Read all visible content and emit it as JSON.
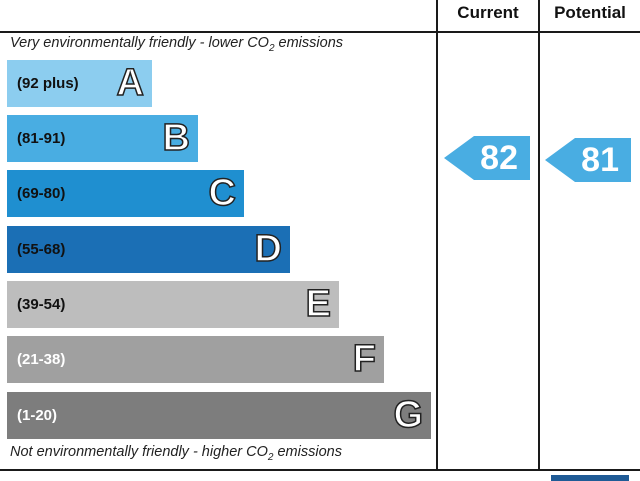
{
  "header": {
    "current_label": "Current",
    "potential_label": "Potential"
  },
  "captions": {
    "top_prefix": "Very environmentally friendly - lower C",
    "top_middle": "O",
    "top_sub": "2",
    "top_suffix": " emissions",
    "bottom_prefix": "Not environmentally friendly - higher C",
    "bottom_middle": "O",
    "bottom_sub": "2",
    "bottom_suffix": " emissions"
  },
  "chart_data": {
    "type": "bar",
    "categories": [
      "A",
      "B",
      "C",
      "D",
      "E",
      "F",
      "G"
    ],
    "ranges": [
      "(92 plus)",
      "(81-91)",
      "(69-80)",
      "(55-68)",
      "(39-54)",
      "(21-38)",
      "(1-20)"
    ],
    "colors": [
      "#8ccdef",
      "#49ade2",
      "#1f8fd0",
      "#1b6fb5",
      "#bdbdbd",
      "#a0a0a0",
      "#7d7d7d"
    ],
    "range_text_colors": [
      "#111111",
      "#111111",
      "#111111",
      "#111111",
      "#111111",
      "#ffffff",
      "#ffffff"
    ],
    "current": {
      "value": 82,
      "label": "82",
      "color": "#49ade2"
    },
    "potential": {
      "value": 81,
      "label": "81",
      "color": "#49ade2"
    }
  }
}
